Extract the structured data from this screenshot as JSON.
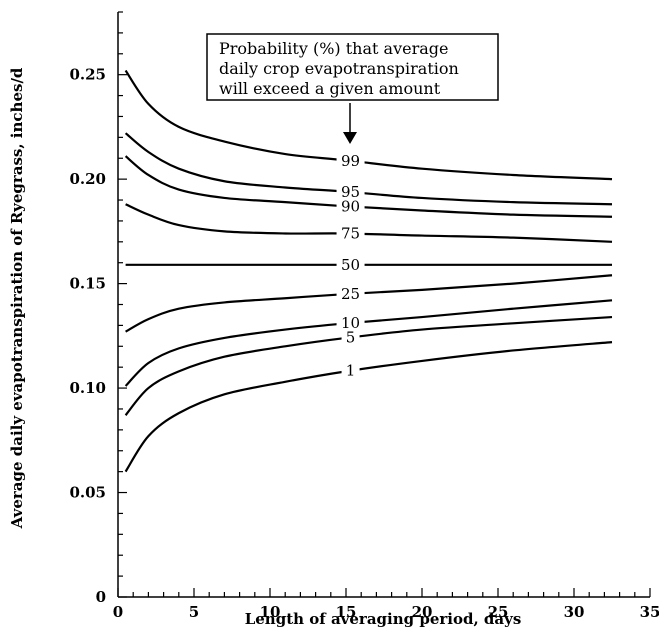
{
  "chart_data": {
    "type": "line",
    "title": "",
    "xlabel": "Length of averaging period, days",
    "ylabel": "Average daily evapotranspiration of Ryegrass, inches/d",
    "xlim": [
      0,
      35
    ],
    "ylim": [
      0,
      0.28
    ],
    "x_ticks": [
      "0",
      "5",
      "10",
      "15",
      "20",
      "25",
      "30",
      "35"
    ],
    "y_ticks": [
      "0",
      "0.05",
      "0.10",
      "0.15",
      "0.20",
      "0.25"
    ],
    "annotation": {
      "lines": [
        "Probability (%) that average",
        "daily crop evapotranspiration",
        "will exceed a given amount"
      ]
    },
    "series": [
      {
        "name": "99",
        "points": [
          [
            0.5,
            0.252
          ],
          [
            2,
            0.236
          ],
          [
            4,
            0.225
          ],
          [
            7,
            0.218
          ],
          [
            11,
            0.212
          ],
          [
            15,
            0.209
          ],
          [
            20,
            0.205
          ],
          [
            26,
            0.202
          ],
          [
            32.5,
            0.2
          ]
        ]
      },
      {
        "name": "95",
        "points": [
          [
            0.5,
            0.222
          ],
          [
            2,
            0.213
          ],
          [
            4,
            0.205
          ],
          [
            7,
            0.199
          ],
          [
            11,
            0.196
          ],
          [
            15,
            0.194
          ],
          [
            20,
            0.191
          ],
          [
            26,
            0.189
          ],
          [
            32.5,
            0.188
          ]
        ]
      },
      {
        "name": "90",
        "points": [
          [
            0.5,
            0.211
          ],
          [
            2,
            0.202
          ],
          [
            4,
            0.195
          ],
          [
            7,
            0.191
          ],
          [
            11,
            0.189
          ],
          [
            15,
            0.187
          ],
          [
            20,
            0.185
          ],
          [
            26,
            0.183
          ],
          [
            32.5,
            0.182
          ]
        ]
      },
      {
        "name": "75",
        "points": [
          [
            0.5,
            0.188
          ],
          [
            2,
            0.183
          ],
          [
            4,
            0.178
          ],
          [
            7,
            0.175
          ],
          [
            11,
            0.174
          ],
          [
            15,
            0.174
          ],
          [
            20,
            0.173
          ],
          [
            26,
            0.172
          ],
          [
            32.5,
            0.17
          ]
        ]
      },
      {
        "name": "50",
        "points": [
          [
            0.5,
            0.159
          ],
          [
            32.5,
            0.159
          ]
        ]
      },
      {
        "name": "25",
        "points": [
          [
            0.5,
            0.127
          ],
          [
            2,
            0.133
          ],
          [
            4,
            0.138
          ],
          [
            7,
            0.141
          ],
          [
            11,
            0.143
          ],
          [
            15,
            0.145
          ],
          [
            20,
            0.147
          ],
          [
            26,
            0.15
          ],
          [
            32.5,
            0.154
          ]
        ]
      },
      {
        "name": "10",
        "points": [
          [
            0.5,
            0.101
          ],
          [
            2,
            0.112
          ],
          [
            4,
            0.119
          ],
          [
            7,
            0.124
          ],
          [
            11,
            0.128
          ],
          [
            15,
            0.131
          ],
          [
            20,
            0.134
          ],
          [
            26,
            0.138
          ],
          [
            32.5,
            0.142
          ]
        ]
      },
      {
        "name": "5",
        "points": [
          [
            0.5,
            0.087
          ],
          [
            2,
            0.1
          ],
          [
            4,
            0.108
          ],
          [
            7,
            0.115
          ],
          [
            11,
            0.12
          ],
          [
            15,
            0.124
          ],
          [
            20,
            0.128
          ],
          [
            26,
            0.131
          ],
          [
            32.5,
            0.134
          ]
        ]
      },
      {
        "name": "1",
        "points": [
          [
            0.5,
            0.06
          ],
          [
            2,
            0.077
          ],
          [
            4,
            0.088
          ],
          [
            7,
            0.097
          ],
          [
            11,
            0.103
          ],
          [
            15,
            0.108
          ],
          [
            20,
            0.113
          ],
          [
            26,
            0.118
          ],
          [
            32.5,
            0.122
          ]
        ]
      }
    ],
    "curve_label_x": 15.3,
    "grid": false
  }
}
